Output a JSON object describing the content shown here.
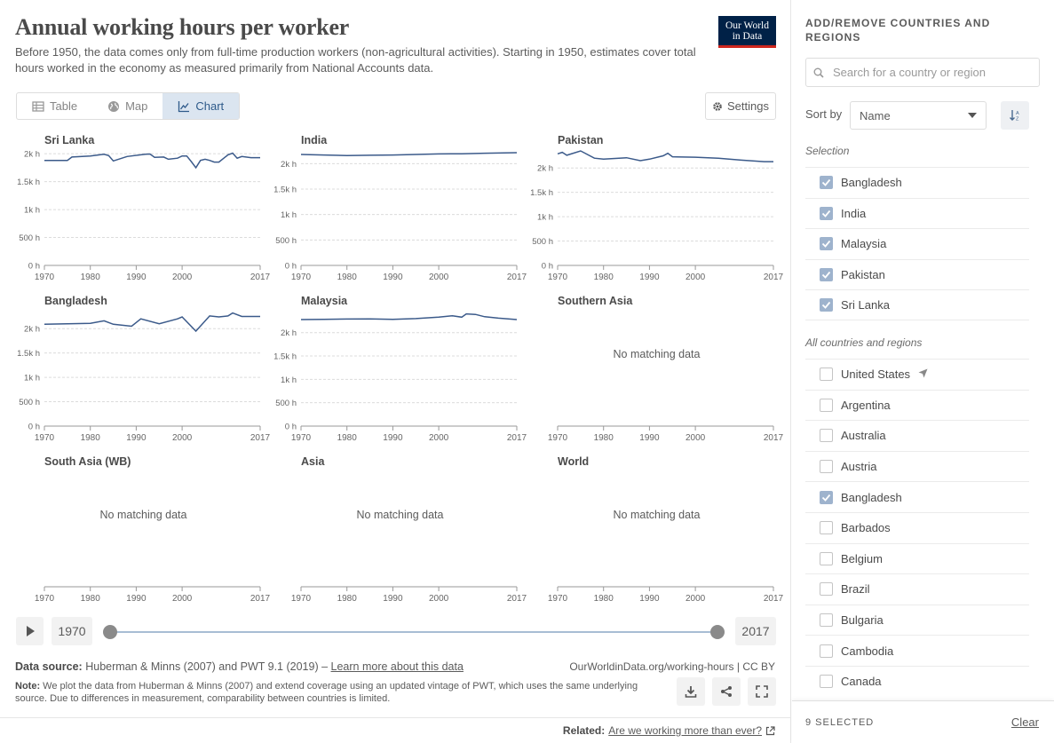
{
  "header": {
    "title": "Annual working hours per worker",
    "subtitle": "Before 1950, the data comes only from full-time production workers (non-agricultural activities). Starting in 1950, estimates cover total hours worked in the economy as measured primarily from National Accounts data.",
    "logo_line1": "Our World",
    "logo_line2": "in Data"
  },
  "tabs": [
    {
      "label": "Table",
      "icon": "table-icon",
      "active": false
    },
    {
      "label": "Map",
      "icon": "globe-icon",
      "active": false
    },
    {
      "label": "Chart",
      "icon": "line-chart-icon",
      "active": true
    }
  ],
  "settings_label": "Settings",
  "colors": {
    "line": "#3b5a8a",
    "accent": "#ce261e",
    "brand": "#002147"
  },
  "chart_data": {
    "type": "line",
    "title": "Annual working hours per worker",
    "x_range": [
      1970,
      2017
    ],
    "x_ticks": [
      1970,
      1980,
      1990,
      2000,
      2017
    ],
    "y_ticks": [
      0,
      500,
      1000,
      1500,
      2000
    ],
    "y_tick_labels": [
      "0 h",
      "500 h",
      "1k h",
      "1.5k h",
      "2k h"
    ],
    "no_data_label": "No matching data",
    "panels": [
      {
        "name": "Sri Lanka",
        "has_data": true,
        "ylim": [
          0,
          2050
        ],
        "series": [
          {
            "name": "Sri Lanka",
            "x": [
              1970,
              1975,
              1976,
              1980,
              1983,
              1984,
              1985,
              1988,
              1992,
              1993,
              1994,
              1996,
              1997,
              1999,
              2000,
              2001,
              2002,
              2003,
              2004,
              2005,
              2006,
              2007,
              2008,
              2010,
              2011,
              2012,
              2013,
              2015,
              2017
            ],
            "y": [
              1880,
              1880,
              1940,
              1960,
              1990,
              1965,
              1870,
              1950,
              1990,
              1995,
              1935,
              1940,
              1900,
              1920,
              1960,
              1960,
              1860,
              1750,
              1880,
              1900,
              1880,
              1850,
              1850,
              1980,
              2010,
              1920,
              1950,
              1930,
              1930
            ]
          }
        ]
      },
      {
        "name": "India",
        "has_data": true,
        "ylim": [
          0,
          2250
        ],
        "series": [
          {
            "name": "India",
            "x": [
              1970,
              1975,
              1980,
              1985,
              1990,
              1995,
              2000,
              2005,
              2010,
              2017
            ],
            "y": [
              2180,
              2170,
              2160,
              2165,
              2170,
              2180,
              2190,
              2195,
              2205,
              2215
            ]
          }
        ]
      },
      {
        "name": "Pakistan",
        "has_data": true,
        "ylim": [
          0,
          2350
        ],
        "series": [
          {
            "name": "Pakistan",
            "x": [
              1970,
              1971,
              1972,
              1975,
              1978,
              1980,
              1985,
              1988,
              1990,
              1993,
              1994,
              1995,
              2000,
              2005,
              2010,
              2015,
              2017
            ],
            "y": [
              2290,
              2320,
              2260,
              2350,
              2200,
              2180,
              2210,
              2150,
              2180,
              2250,
              2300,
              2230,
              2220,
              2200,
              2160,
              2130,
              2130
            ]
          }
        ]
      },
      {
        "name": "Bangladesh",
        "has_data": true,
        "ylim": [
          0,
          2350
        ],
        "series": [
          {
            "name": "Bangladesh",
            "x": [
              1970,
              1975,
              1980,
              1983,
              1985,
              1989,
              1991,
              1995,
              1999,
              2000,
              2003,
              2006,
              2008,
              2010,
              2011,
              2013,
              2017
            ],
            "y": [
              2090,
              2100,
              2110,
              2160,
              2090,
              2050,
              2200,
              2100,
              2200,
              2240,
              1950,
              2260,
              2240,
              2260,
              2320,
              2250,
              2250
            ]
          }
        ]
      },
      {
        "name": "Malaysia",
        "has_data": true,
        "ylim": [
          0,
          2450
        ],
        "series": [
          {
            "name": "Malaysia",
            "x": [
              1970,
              1975,
              1980,
              1985,
              1990,
              1995,
              2000,
              2003,
              2005,
              2006,
              2008,
              2010,
              2013,
              2017
            ],
            "y": [
              2280,
              2285,
              2290,
              2295,
              2285,
              2300,
              2330,
              2360,
              2330,
              2400,
              2390,
              2340,
              2310,
              2280
            ]
          }
        ]
      },
      {
        "name": "Southern Asia",
        "has_data": false
      },
      {
        "name": "South Asia (WB)",
        "has_data": false
      },
      {
        "name": "Asia",
        "has_data": false
      },
      {
        "name": "World",
        "has_data": false
      }
    ]
  },
  "timeline": {
    "start_year": "1970",
    "end_year": "2017",
    "play_label": "play"
  },
  "footer": {
    "source_label": "Data source:",
    "source_text": "Huberman & Minns (2007) and PWT 9.1 (2019) –",
    "source_link": "Learn more about this data",
    "credit": "OurWorldinData.org/working-hours | CC BY",
    "note_label": "Note:",
    "note_text": "We plot the data from Huberman & Minns (2007) and extend coverage using an updated vintage of PWT, which uses the same underlying source. Due to differences in measurement, comparability between countries is limited.",
    "related_label": "Related:",
    "related_link": "Are we working more than ever?"
  },
  "sidebar": {
    "title": "ADD/REMOVE COUNTRIES AND REGIONS",
    "search_placeholder": "Search for a country or region",
    "sort_label": "Sort by",
    "sort_value": "Name",
    "selection_label": "Selection",
    "selection": [
      {
        "name": "Bangladesh",
        "checked": true
      },
      {
        "name": "India",
        "checked": true
      },
      {
        "name": "Malaysia",
        "checked": true
      },
      {
        "name": "Pakistan",
        "checked": true
      },
      {
        "name": "Sri Lanka",
        "checked": true
      }
    ],
    "all_label": "All countries and regions",
    "all": [
      {
        "name": "United States",
        "checked": false,
        "locate": true
      },
      {
        "name": "Argentina",
        "checked": false
      },
      {
        "name": "Australia",
        "checked": false
      },
      {
        "name": "Austria",
        "checked": false
      },
      {
        "name": "Bangladesh",
        "checked": true
      },
      {
        "name": "Barbados",
        "checked": false
      },
      {
        "name": "Belgium",
        "checked": false
      },
      {
        "name": "Brazil",
        "checked": false
      },
      {
        "name": "Bulgaria",
        "checked": false
      },
      {
        "name": "Cambodia",
        "checked": false
      },
      {
        "name": "Canada",
        "checked": false
      }
    ],
    "selected_count": "9 SELECTED",
    "clear_label": "Clear"
  }
}
